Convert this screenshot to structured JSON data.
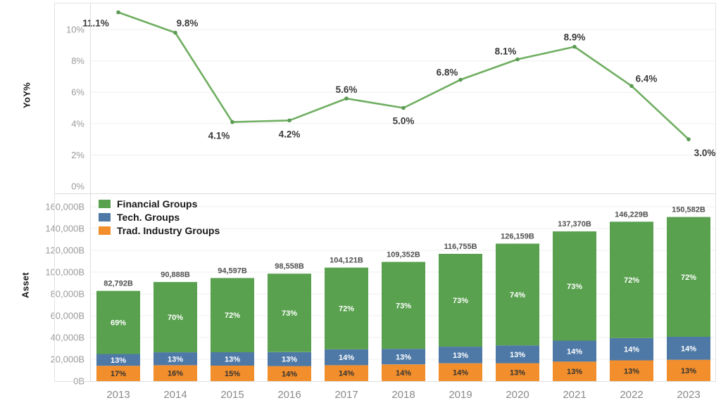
{
  "chart_data": [
    {
      "type": "line",
      "ylabel": "YoY%",
      "x": [
        "2013",
        "2014",
        "2015",
        "2016",
        "2017",
        "2018",
        "2019",
        "2020",
        "2021",
        "2022",
        "2023"
      ],
      "values": [
        11.1,
        9.8,
        4.1,
        4.2,
        5.6,
        5.0,
        6.8,
        8.1,
        8.9,
        6.4,
        3.0
      ],
      "point_labels": [
        "11.1%",
        "9.8%",
        "4.1%",
        "4.2%",
        "5.6%",
        "5.0%",
        "6.8%",
        "8.1%",
        "8.9%",
        "6.4%",
        "3.0%"
      ],
      "yticks": [
        0,
        2,
        4,
        6,
        8,
        10
      ],
      "ytick_labels": [
        "0%",
        "2%",
        "4%",
        "6%",
        "8%",
        "10%"
      ],
      "ylim": [
        0,
        11.8
      ],
      "grid": true,
      "legend_position": "none",
      "line_color": "#6fae60",
      "marker_color": "#5b9a53",
      "label_color": "#3a3a3a"
    },
    {
      "type": "bar",
      "stacked": true,
      "ylabel": "Asset",
      "categories": [
        "2013",
        "2014",
        "2015",
        "2016",
        "2017",
        "2018",
        "2019",
        "2020",
        "2021",
        "2022",
        "2023"
      ],
      "totals": [
        82792,
        90888,
        94597,
        98558,
        104121,
        109352,
        116755,
        126159,
        137370,
        146229,
        150582
      ],
      "total_labels": [
        "82,792B",
        "90,888B",
        "94,597B",
        "98,558B",
        "104,121B",
        "109,352B",
        "116,755B",
        "126,159B",
        "137,370B",
        "146,229B",
        "150,582B"
      ],
      "series": [
        {
          "name": "Financial Groups",
          "color": "#59a14f",
          "pct": [
            69,
            70,
            72,
            73,
            72,
            73,
            73,
            74,
            73,
            72,
            72
          ],
          "pct_labels": [
            "69%",
            "70%",
            "72%",
            "73%",
            "72%",
            "73%",
            "73%",
            "74%",
            "73%",
            "72%",
            "72%"
          ],
          "label_color": "#ffffff"
        },
        {
          "name": "Tech. Groups",
          "color": "#4e79a7",
          "pct": [
            13,
            13,
            13,
            13,
            14,
            13,
            13,
            13,
            14,
            14,
            14
          ],
          "pct_labels": [
            "13%",
            "13%",
            "13%",
            "13%",
            "14%",
            "13%",
            "13%",
            "13%",
            "14%",
            "14%",
            "14%"
          ],
          "label_color": "#ffffff"
        },
        {
          "name": "Trad. Industry Groups",
          "color": "#f28e2b",
          "pct": [
            17,
            16,
            15,
            14,
            14,
            14,
            14,
            13,
            13,
            13,
            13
          ],
          "pct_labels": [
            "17%",
            "16%",
            "15%",
            "14%",
            "14%",
            "14%",
            "14%",
            "13%",
            "13%",
            "13%",
            "13%"
          ],
          "label_color": "#333333"
        }
      ],
      "yticks": [
        0,
        20000,
        40000,
        60000,
        80000,
        100000,
        120000,
        140000,
        160000
      ],
      "ytick_labels": [
        "0B",
        "20,000B",
        "40,000B",
        "60,000B",
        "80,000B",
        "100,000B",
        "120,000B",
        "140,000B",
        "160,000B"
      ],
      "ylim": [
        0,
        160000
      ],
      "grid": true,
      "legend_position": "top-left",
      "total_label_color": "#4f4f4f",
      "xtick_color": "#8a8a8a"
    }
  ],
  "style": {
    "tick_label_color": "#9b9b9b",
    "grid_color": "#efefef",
    "border_color": "#e2e2e2",
    "axis_line_color": "#dcdcdc"
  }
}
